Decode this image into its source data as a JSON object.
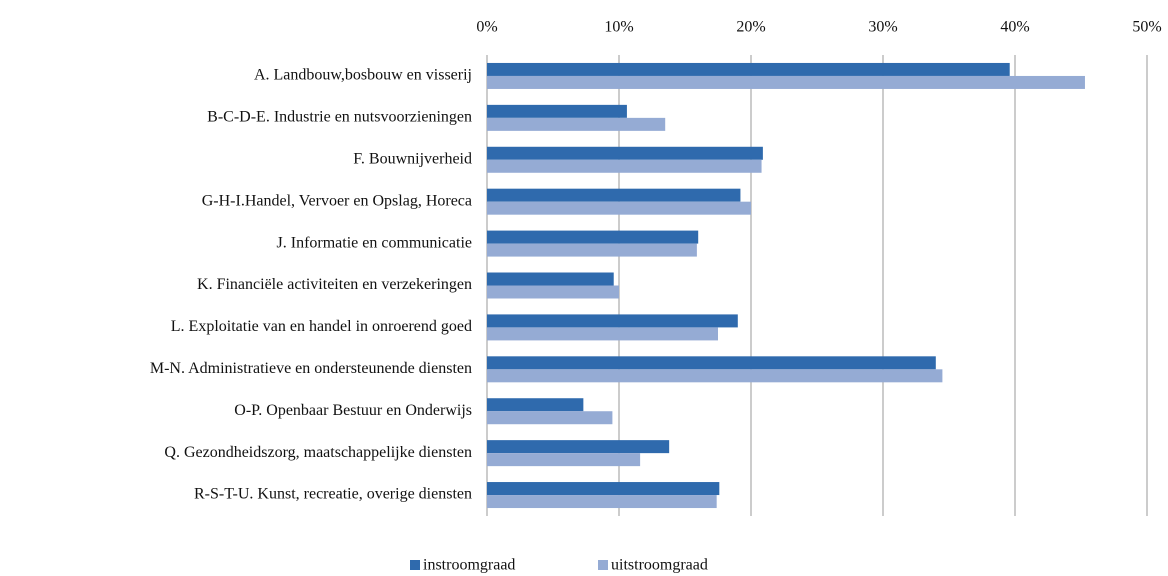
{
  "chart_data": {
    "type": "barh",
    "categories": [
      "A. Landbouw,bosbouw en visserij",
      "B-C-D-E. Industrie en nutsvoorzieningen",
      "F. Bouwnijverheid",
      "G-H-I.Handel, Vervoer en Opslag, Horeca",
      "J. Informatie en communicatie",
      "K. Financiële activiteiten en verzekeringen",
      "L. Exploitatie van en handel in onroerend goed",
      "M-N. Administratieve en ondersteunende diensten",
      "O-P. Openbaar Bestuur en Onderwijs",
      "Q. Gezondheidszorg, maatschappelijke diensten",
      "R-S-T-U. Kunst, recreatie, overige diensten"
    ],
    "series": [
      {
        "name": "instroomgraad",
        "color": "#2f6aad",
        "values": [
          39.6,
          10.6,
          20.9,
          19.2,
          16.0,
          9.6,
          19.0,
          34.0,
          7.3,
          13.8,
          17.6
        ]
      },
      {
        "name": "uitstroomgraad",
        "color": "#95abd4",
        "values": [
          45.3,
          13.5,
          20.8,
          20.0,
          15.9,
          10.0,
          17.5,
          34.5,
          9.5,
          11.6,
          17.4
        ]
      }
    ],
    "xlim": [
      0,
      50
    ],
    "xticks": [
      {
        "value": 0,
        "label": "0%"
      },
      {
        "value": 10,
        "label": "10%"
      },
      {
        "value": 20,
        "label": "20%"
      },
      {
        "value": 30,
        "label": "30%"
      },
      {
        "value": 40,
        "label": "40%"
      },
      {
        "value": 50,
        "label": "50%"
      }
    ],
    "grid": true,
    "legend": "bottom"
  }
}
